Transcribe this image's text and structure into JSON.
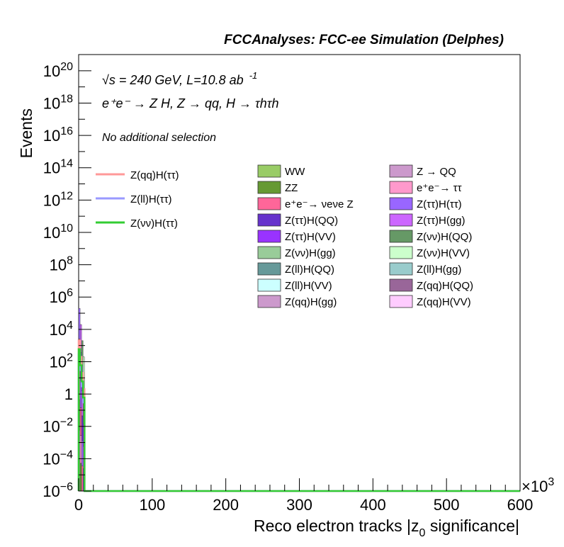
{
  "chart_data": {
    "type": "bar",
    "title": "FCCAnalyses: FCC-ee Simulation (Delphes)",
    "xlabel": "Reco electron tracks |z",
    "xlabel_sub": "0",
    "xlabel_tail": " significance|",
    "ylabel": "Events",
    "x_multiplier": "×10",
    "x_multiplier_exp": "3",
    "xlim": [
      0,
      600
    ],
    "ylim": [
      1e-06,
      1e+21
    ],
    "yscale": "log",
    "grid": false,
    "x_ticks": [
      "0",
      "100",
      "200",
      "300",
      "400",
      "500",
      "600"
    ],
    "y_ticks": [
      {
        "base": "10",
        "exp": "20",
        "value": 1e+20
      },
      {
        "base": "10",
        "exp": "18",
        "value": 1e+18
      },
      {
        "base": "10",
        "exp": "16",
        "value": 1e+16
      },
      {
        "base": "10",
        "exp": "14",
        "value": 100000000000000.0
      },
      {
        "base": "10",
        "exp": "12",
        "value": 1000000000000.0
      },
      {
        "base": "10",
        "exp": "10",
        "value": 10000000000.0
      },
      {
        "base": "10",
        "exp": "8",
        "value": 100000000.0
      },
      {
        "base": "10",
        "exp": "6",
        "value": 1000000.0
      },
      {
        "base": "10",
        "exp": "4",
        "value": 10000.0
      },
      {
        "base": "10",
        "exp": "2",
        "value": 100.0
      },
      {
        "base": "1",
        "exp": "",
        "value": 1
      },
      {
        "base": "10",
        "exp": "−2",
        "value": 0.01
      },
      {
        "base": "10",
        "exp": "−4",
        "value": 0.0001
      },
      {
        "base": "10",
        "exp": "−6",
        "value": 1e-06
      }
    ],
    "annotations": {
      "line1": "√s = 240 GeV, L=10.8 ab",
      "line1_exp": "-1",
      "line2": "e⁺e⁻ → Z H, Z → qq, H → τhτh",
      "line3": "No additional selection"
    },
    "legend_placement": "top",
    "signal_series": [
      {
        "name": "Z(qq)H(ττ)",
        "color": "#ff9999",
        "x": [
          0,
          2,
          4,
          6
        ],
        "values": [
          2000,
          200,
          20,
          2
        ]
      },
      {
        "name": "Z(ll)H(ττ)",
        "color": "#9999ff",
        "x": [
          0,
          2,
          4,
          6
        ],
        "values": [
          300,
          30,
          3,
          0.3
        ]
      },
      {
        "name": "Z(νν)H(ττ)",
        "color": "#33cc33",
        "x": [
          0,
          2,
          4,
          6
        ],
        "values": [
          600,
          60,
          6,
          0.6
        ]
      }
    ],
    "stack_series": [
      {
        "name": "WW",
        "color": "#99cc66"
      },
      {
        "name": "Z → QQ",
        "color": "#cc99cc"
      },
      {
        "name": "ZZ",
        "color": "#669933"
      },
      {
        "name": "e⁺e⁻→ ττ",
        "color": "#ff99cc"
      },
      {
        "name": "e⁺e⁻→ νeνe Z",
        "color": "#ff6699"
      },
      {
        "name": "Z(ττ)H(ττ)",
        "color": "#9966ff"
      },
      {
        "name": "Z(ττ)H(QQ)",
        "color": "#6633cc"
      },
      {
        "name": "Z(ττ)H(gg)",
        "color": "#cc66ff"
      },
      {
        "name": "Z(ττ)H(VV)",
        "color": "#9933ff"
      },
      {
        "name": "Z(νν)H(QQ)",
        "color": "#669966"
      },
      {
        "name": "Z(νν)H(gg)",
        "color": "#99cc99"
      },
      {
        "name": "Z(νν)H(VV)",
        "color": "#ccffcc"
      },
      {
        "name": "Z(ll)H(QQ)",
        "color": "#669999"
      },
      {
        "name": "Z(ll)H(gg)",
        "color": "#99cccc"
      },
      {
        "name": "Z(ll)H(VV)",
        "color": "#ccffff"
      },
      {
        "name": "Z(qq)H(QQ)",
        "color": "#996699"
      },
      {
        "name": "Z(qq)H(gg)",
        "color": "#cc99cc"
      },
      {
        "name": "Z(qq)H(VV)",
        "color": "#ffccff"
      }
    ],
    "stack_total": {
      "x": [
        0,
        2,
        4,
        6
      ],
      "values": [
        200000,
        20000,
        2000,
        200
      ]
    }
  }
}
